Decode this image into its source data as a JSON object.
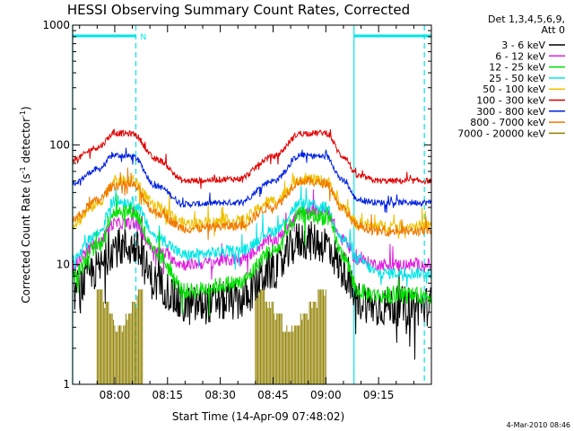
{
  "chart_data": {
    "type": "line",
    "title": "HESSI Observing Summary Count Rates, Corrected",
    "xlabel": "Start Time (14-Apr-09 07:48:02)",
    "ylabel_main": "Corrected Count Rate (s",
    "ylabel_sup1": "-1",
    "ylabel_mid": " detector",
    "ylabel_sup2": "-1",
    "ylabel_end": ")",
    "yscale": "log",
    "ylim": [
      1,
      1000
    ],
    "xlim": [
      "07:48:02",
      "09:30:00"
    ],
    "x_ticks": [
      "08:00",
      "08:15",
      "08:30",
      "08:45",
      "09:00",
      "09:15"
    ],
    "y_ticks": [
      "1",
      "10",
      "100",
      "1000"
    ],
    "legend_header": [
      "Det 1,3,4,5,6,9,",
      "Att 0"
    ],
    "footer_date": "4-Mar-2010 08:46",
    "flag_label": "N",
    "colors": {
      "flag": "#00e5e5",
      "axis": "#000000"
    },
    "x_nodes": [
      "07:48",
      "07:55",
      "08:00",
      "08:05",
      "08:12",
      "08:20",
      "08:35",
      "08:45",
      "08:53",
      "09:00",
      "09:05",
      "09:09",
      "09:15",
      "09:25",
      "09:30"
    ],
    "series": [
      {
        "name": "3 - 6 keV",
        "color": "#000000",
        "noise": 0.17,
        "values": [
          6,
          9,
          14,
          14,
          7,
          4.5,
          5,
          9,
          16,
          15,
          9,
          5,
          4.5,
          4.5,
          4.5
        ]
      },
      {
        "name": "6 - 12 keV",
        "color": "#e020e0",
        "noise": 0.05,
        "values": [
          10,
          15,
          22,
          22,
          13,
          10,
          11,
          16,
          27,
          28,
          16,
          11,
          10,
          10,
          10
        ]
      },
      {
        "name": "12 - 25 keV",
        "color": "#00e000",
        "noise": 0.07,
        "values": [
          8,
          14,
          28,
          28,
          12,
          6,
          7,
          13,
          26,
          25,
          12,
          6,
          5.5,
          5.5,
          5.5
        ]
      },
      {
        "name": "25 - 50 keV",
        "color": "#00e5e5",
        "noise": 0.05,
        "values": [
          11,
          18,
          34,
          33,
          17,
          12,
          13,
          19,
          32,
          30,
          16,
          11,
          8.5,
          8.5,
          8.5
        ]
      },
      {
        "name": "50 - 100 keV",
        "color": "#f0c000",
        "noise": 0.05,
        "values": [
          22,
          32,
          50,
          50,
          30,
          22,
          23,
          34,
          52,
          50,
          30,
          22,
          21,
          21,
          21
        ]
      },
      {
        "name": "100 - 300 keV",
        "color": "#e00000",
        "noise": 0.025,
        "values": [
          75,
          95,
          125,
          124,
          75,
          50,
          52,
          80,
          125,
          126,
          80,
          55,
          50,
          50,
          50
        ]
      },
      {
        "name": "300 - 800 keV",
        "color": "#0020e0",
        "noise": 0.025,
        "values": [
          48,
          62,
          82,
          80,
          45,
          32,
          33,
          50,
          82,
          80,
          50,
          35,
          33,
          33,
          33
        ]
      },
      {
        "name": "800 - 7000 keV",
        "color": "#f07800",
        "noise": 0.04,
        "values": [
          24,
          34,
          46,
          46,
          27,
          20,
          21,
          31,
          50,
          48,
          29,
          21,
          19,
          19,
          19
        ]
      },
      {
        "name": "7000 - 20000 keV",
        "color": "#908000",
        "noise": 0,
        "values": []
      }
    ],
    "attenuator_flag_intervals": [
      [
        "07:48",
        "08:06"
      ],
      [
        "09:08",
        "09:30"
      ]
    ],
    "vertical_markers_solid": [
      "07:48",
      "09:08"
    ],
    "vertical_markers_dashed": [
      "08:06",
      "09:28"
    ]
  }
}
